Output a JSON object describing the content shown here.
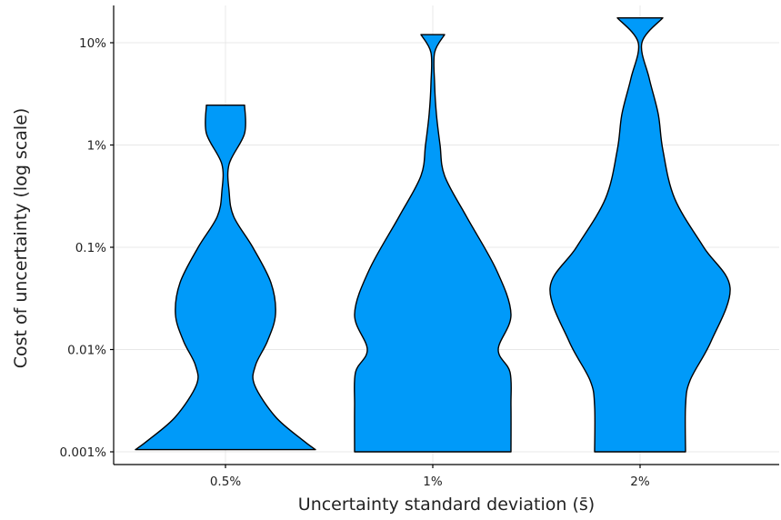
{
  "chart_data": {
    "type": "violin",
    "title": "",
    "xlabel": "Uncertainty standard deviation (s̄)",
    "ylabel": "Cost of uncertainty (log scale)",
    "y_scale": "log",
    "ylim_percent": [
      0.0009,
      21
    ],
    "grid": true,
    "legend": "none",
    "fill_color": "#009AF9",
    "y_ticks": [
      {
        "value": 0.001,
        "label": "0.001%"
      },
      {
        "value": 0.01,
        "label": "0.01%"
      },
      {
        "value": 0.1,
        "label": "0.1%"
      },
      {
        "value": 1,
        "label": "1%"
      },
      {
        "value": 10,
        "label": "10%"
      }
    ],
    "categories": [
      "0.5%",
      "1%",
      "2%"
    ],
    "series": [
      {
        "category": "0.5%",
        "min_percent": 0.00105,
        "max_percent": 2.45,
        "density_profile": [
          {
            "y": 0.00105,
            "w": 0.99
          },
          {
            "y": 0.0013,
            "w": 0.85
          },
          {
            "y": 0.0022,
            "w": 0.55
          },
          {
            "y": 0.0045,
            "w": 0.32
          },
          {
            "y": 0.007,
            "w": 0.33
          },
          {
            "y": 0.012,
            "w": 0.46
          },
          {
            "y": 0.022,
            "w": 0.55
          },
          {
            "y": 0.045,
            "w": 0.5
          },
          {
            "y": 0.1,
            "w": 0.3
          },
          {
            "y": 0.2,
            "w": 0.09
          },
          {
            "y": 0.35,
            "w": 0.04
          },
          {
            "y": 0.65,
            "w": 0.04
          },
          {
            "y": 1.3,
            "w": 0.21
          },
          {
            "y": 2.45,
            "w": 0.21
          }
        ]
      },
      {
        "category": "1%",
        "min_percent": 0.001,
        "max_percent": 12,
        "density_profile": [
          {
            "y": 0.001,
            "w": 0.86
          },
          {
            "y": 0.0028,
            "w": 0.86
          },
          {
            "y": 0.006,
            "w": 0.85
          },
          {
            "y": 0.01,
            "w": 0.72
          },
          {
            "y": 0.022,
            "w": 0.86
          },
          {
            "y": 0.06,
            "w": 0.7
          },
          {
            "y": 0.2,
            "w": 0.37
          },
          {
            "y": 0.5,
            "w": 0.13
          },
          {
            "y": 1.0,
            "w": 0.08
          },
          {
            "y": 2.0,
            "w": 0.04
          },
          {
            "y": 4.0,
            "w": 0.02
          },
          {
            "y": 8.0,
            "w": 0.02
          },
          {
            "y": 12,
            "w": 0.13
          }
        ]
      },
      {
        "category": "2%",
        "min_percent": 0.001,
        "max_percent": 17.5,
        "density_profile": [
          {
            "y": 0.001,
            "w": 0.5
          },
          {
            "y": 0.0028,
            "w": 0.5
          },
          {
            "y": 0.005,
            "w": 0.55
          },
          {
            "y": 0.012,
            "w": 0.78
          },
          {
            "y": 0.04,
            "w": 0.99
          },
          {
            "y": 0.1,
            "w": 0.7
          },
          {
            "y": 0.3,
            "w": 0.38
          },
          {
            "y": 0.9,
            "w": 0.25
          },
          {
            "y": 2.0,
            "w": 0.2
          },
          {
            "y": 4.5,
            "w": 0.1
          },
          {
            "y": 10,
            "w": 0.02
          },
          {
            "y": 17.5,
            "w": 0.25
          }
        ]
      }
    ]
  }
}
